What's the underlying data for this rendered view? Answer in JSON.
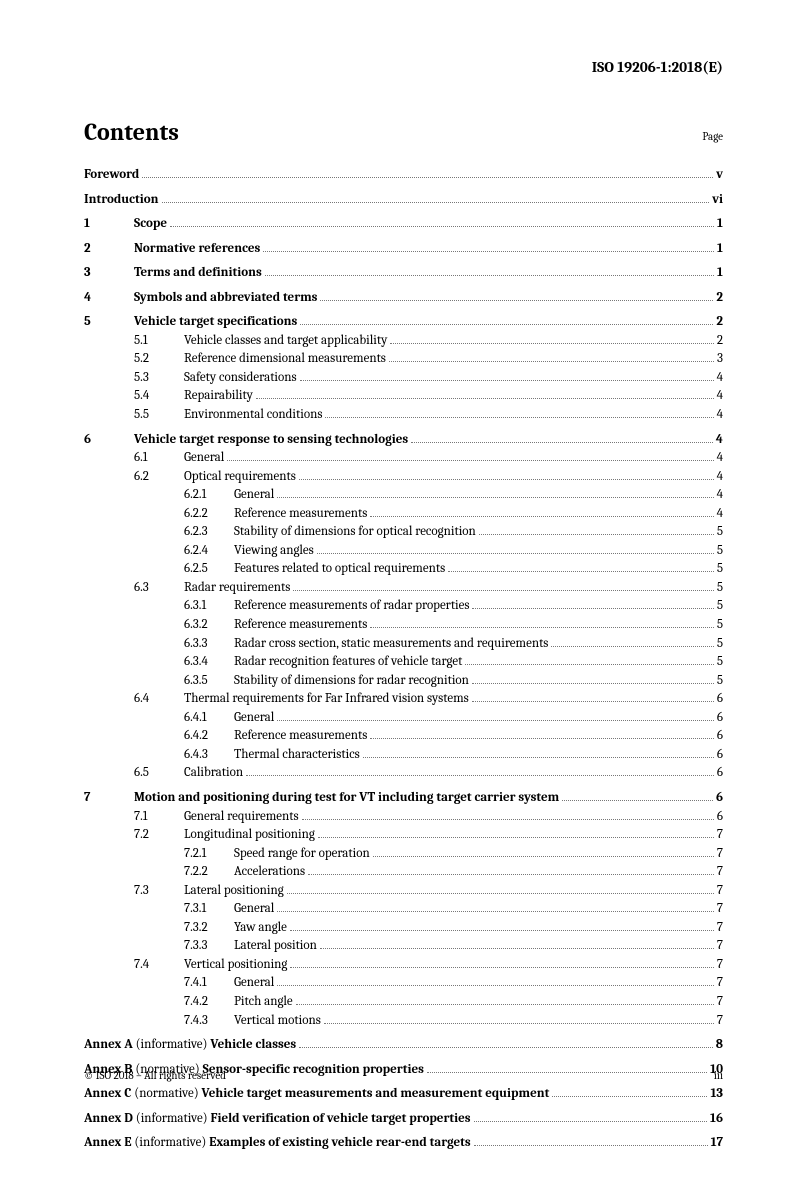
{
  "document_id": "ISO 19206-1:2018(E)",
  "title": "Contents",
  "page_label": "Page",
  "footer_left": "© ISO 2018 – All rights reserved",
  "footer_right": "iii",
  "entries": [
    {
      "level": 0,
      "num": "",
      "label": "Foreword",
      "page": "v",
      "bold": true,
      "gap": false
    },
    {
      "level": 0,
      "num": "",
      "label": "Introduction",
      "page": "vi",
      "bold": true,
      "gap": true
    },
    {
      "level": 0,
      "num": "1",
      "label": "Scope",
      "page": "1",
      "bold": true,
      "gap": true
    },
    {
      "level": 0,
      "num": "2",
      "label": "Normative references",
      "page": "1",
      "bold": true,
      "gap": true
    },
    {
      "level": 0,
      "num": "3",
      "label": "Terms and definitions",
      "page": "1",
      "bold": true,
      "gap": true
    },
    {
      "level": 0,
      "num": "4",
      "label": "Symbols and abbreviated terms",
      "page": "2",
      "bold": true,
      "gap": true
    },
    {
      "level": 0,
      "num": "5",
      "label": "Vehicle target specifications",
      "page": "2",
      "bold": true,
      "gap": true
    },
    {
      "level": 1,
      "num": "5.1",
      "label": "Vehicle classes and target applicability",
      "page": "2",
      "bold": false,
      "gap": false
    },
    {
      "level": 1,
      "num": "5.2",
      "label": "Reference dimensional measurements",
      "page": "3",
      "bold": false,
      "gap": false
    },
    {
      "level": 1,
      "num": "5.3",
      "label": "Safety considerations",
      "page": "4",
      "bold": false,
      "gap": false
    },
    {
      "level": 1,
      "num": "5.4",
      "label": "Repairability",
      "page": "4",
      "bold": false,
      "gap": false
    },
    {
      "level": 1,
      "num": "5.5",
      "label": "Environmental conditions",
      "page": "4",
      "bold": false,
      "gap": false
    },
    {
      "level": 0,
      "num": "6",
      "label": "Vehicle target response to sensing technologies",
      "page": "4",
      "bold": true,
      "gap": true
    },
    {
      "level": 1,
      "num": "6.1",
      "label": "General",
      "page": "4",
      "bold": false,
      "gap": false
    },
    {
      "level": 1,
      "num": "6.2",
      "label": "Optical requirements",
      "page": "4",
      "bold": false,
      "gap": false
    },
    {
      "level": 2,
      "num": "6.2.1",
      "label": "General",
      "page": "4",
      "bold": false,
      "gap": false
    },
    {
      "level": 2,
      "num": "6.2.2",
      "label": "Reference measurements",
      "page": "4",
      "bold": false,
      "gap": false
    },
    {
      "level": 2,
      "num": "6.2.3",
      "label": "Stability of dimensions for optical recognition",
      "page": "5",
      "bold": false,
      "gap": false
    },
    {
      "level": 2,
      "num": "6.2.4",
      "label": "Viewing angles",
      "page": "5",
      "bold": false,
      "gap": false
    },
    {
      "level": 2,
      "num": "6.2.5",
      "label": "Features related to optical requirements",
      "page": "5",
      "bold": false,
      "gap": false
    },
    {
      "level": 1,
      "num": "6.3",
      "label": "Radar requirements",
      "page": "5",
      "bold": false,
      "gap": false
    },
    {
      "level": 2,
      "num": "6.3.1",
      "label": "Reference measurements of radar properties",
      "page": "5",
      "bold": false,
      "gap": false
    },
    {
      "level": 2,
      "num": "6.3.2",
      "label": "Reference measurements",
      "page": "5",
      "bold": false,
      "gap": false
    },
    {
      "level": 2,
      "num": "6.3.3",
      "label": "Radar cross section, static measurements and requirements",
      "page": "5",
      "bold": false,
      "gap": false
    },
    {
      "level": 2,
      "num": "6.3.4",
      "label": "Radar recognition features of vehicle target",
      "page": "5",
      "bold": false,
      "gap": false
    },
    {
      "level": 2,
      "num": "6.3.5",
      "label": "Stability of dimensions for radar recognition",
      "page": "5",
      "bold": false,
      "gap": false
    },
    {
      "level": 1,
      "num": "6.4",
      "label": "Thermal requirements for Far Infrared vision systems",
      "page": "6",
      "bold": false,
      "gap": false
    },
    {
      "level": 2,
      "num": "6.4.1",
      "label": "General",
      "page": "6",
      "bold": false,
      "gap": false
    },
    {
      "level": 2,
      "num": "6.4.2",
      "label": "Reference measurements",
      "page": "6",
      "bold": false,
      "gap": false
    },
    {
      "level": 2,
      "num": "6.4.3",
      "label": "Thermal characteristics",
      "page": "6",
      "bold": false,
      "gap": false
    },
    {
      "level": 1,
      "num": "6.5",
      "label": "Calibration",
      "page": "6",
      "bold": false,
      "gap": false
    },
    {
      "level": 0,
      "num": "7",
      "label": "Motion and positioning during test for VT including target carrier system",
      "page": "6",
      "bold": true,
      "gap": true
    },
    {
      "level": 1,
      "num": "7.1",
      "label": "General requirements",
      "page": "6",
      "bold": false,
      "gap": false
    },
    {
      "level": 1,
      "num": "7.2",
      "label": "Longitudinal positioning",
      "page": "7",
      "bold": false,
      "gap": false
    },
    {
      "level": 2,
      "num": "7.2.1",
      "label": "Speed range for operation",
      "page": "7",
      "bold": false,
      "gap": false
    },
    {
      "level": 2,
      "num": "7.2.2",
      "label": "Accelerations",
      "page": "7",
      "bold": false,
      "gap": false
    },
    {
      "level": 1,
      "num": "7.3",
      "label": "Lateral positioning",
      "page": "7",
      "bold": false,
      "gap": false
    },
    {
      "level": 2,
      "num": "7.3.1",
      "label": "General",
      "page": "7",
      "bold": false,
      "gap": false
    },
    {
      "level": 2,
      "num": "7.3.2",
      "label": "Yaw angle",
      "page": "7",
      "bold": false,
      "gap": false
    },
    {
      "level": 2,
      "num": "7.3.3",
      "label": "Lateral position",
      "page": "7",
      "bold": false,
      "gap": false
    },
    {
      "level": 1,
      "num": "7.4",
      "label": "Vertical positioning",
      "page": "7",
      "bold": false,
      "gap": false
    },
    {
      "level": 2,
      "num": "7.4.1",
      "label": "General",
      "page": "7",
      "bold": false,
      "gap": false
    },
    {
      "level": 2,
      "num": "7.4.2",
      "label": "Pitch angle",
      "page": "7",
      "bold": false,
      "gap": false
    },
    {
      "level": 2,
      "num": "7.4.3",
      "label": "Vertical motions",
      "page": "7",
      "bold": false,
      "gap": false
    }
  ],
  "annexes": [
    {
      "prefix": "Annex A",
      "type": "(informative)",
      "title": "Vehicle classes",
      "page": "8"
    },
    {
      "prefix": "Annex B",
      "type": "(normative)",
      "title": "Sensor-specific recognition properties",
      "page": "10"
    },
    {
      "prefix": "Annex C",
      "type": "(normative)",
      "title": "Vehicle target measurements and measurement equipment",
      "page": "13"
    },
    {
      "prefix": "Annex D",
      "type": "(informative)",
      "title": "Field verification of vehicle target properties",
      "page": "16"
    },
    {
      "prefix": "Annex E",
      "type": "(informative)",
      "title": "Examples of existing vehicle rear-end targets",
      "page": "17"
    }
  ]
}
